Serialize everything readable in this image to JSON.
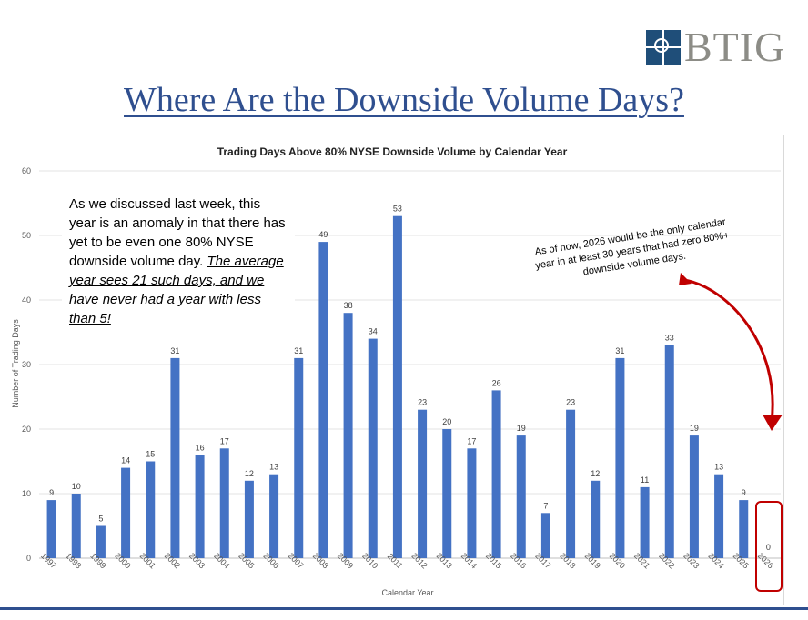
{
  "brand": {
    "logo_text": "BTIG",
    "logo_color": "#8c8c86",
    "mark_color": "#1f4e79"
  },
  "slide": {
    "title": "Where Are the Downside Volume Days?"
  },
  "callout": {
    "line_plain": "As we discussed last week, this year is an anomaly in that there has yet to be even one 80% NYSE downside volume day.",
    "line_emphasis": "The average year sees 21 such days, and we have never had a year with less than 5!"
  },
  "annotation": {
    "text": "As of now, 2026 would be the only calendar year in at least 30 years that had zero 80%+ downside volume days.",
    "arrow_color": "#c00000"
  },
  "chart_data": {
    "type": "bar",
    "title": "Trading Days Above 80% NYSE Downside Volume by Calendar Year",
    "xlabel": "Calendar Year",
    "ylabel": "Number of Trading Days",
    "ylim": [
      0,
      60
    ],
    "yticks": [
      0,
      10,
      20,
      30,
      40,
      50,
      60
    ],
    "grid": true,
    "bar_color": "#4472c4",
    "categories": [
      "1997",
      "1998",
      "1999",
      "2000",
      "2001",
      "2002",
      "2003",
      "2004",
      "2005",
      "2006",
      "2007",
      "2008",
      "2009",
      "2010",
      "2011",
      "2012",
      "2013",
      "2014",
      "2015",
      "2016",
      "2017",
      "2018",
      "2019",
      "2020",
      "2021",
      "2022",
      "2023",
      "2024",
      "2025",
      "2026"
    ],
    "values": [
      9,
      10,
      5,
      14,
      15,
      31,
      16,
      17,
      12,
      13,
      31,
      49,
      38,
      34,
      53,
      23,
      20,
      17,
      26,
      19,
      7,
      23,
      12,
      31,
      11,
      33,
      19,
      13,
      9,
      0
    ],
    "highlight_category": "2026"
  }
}
